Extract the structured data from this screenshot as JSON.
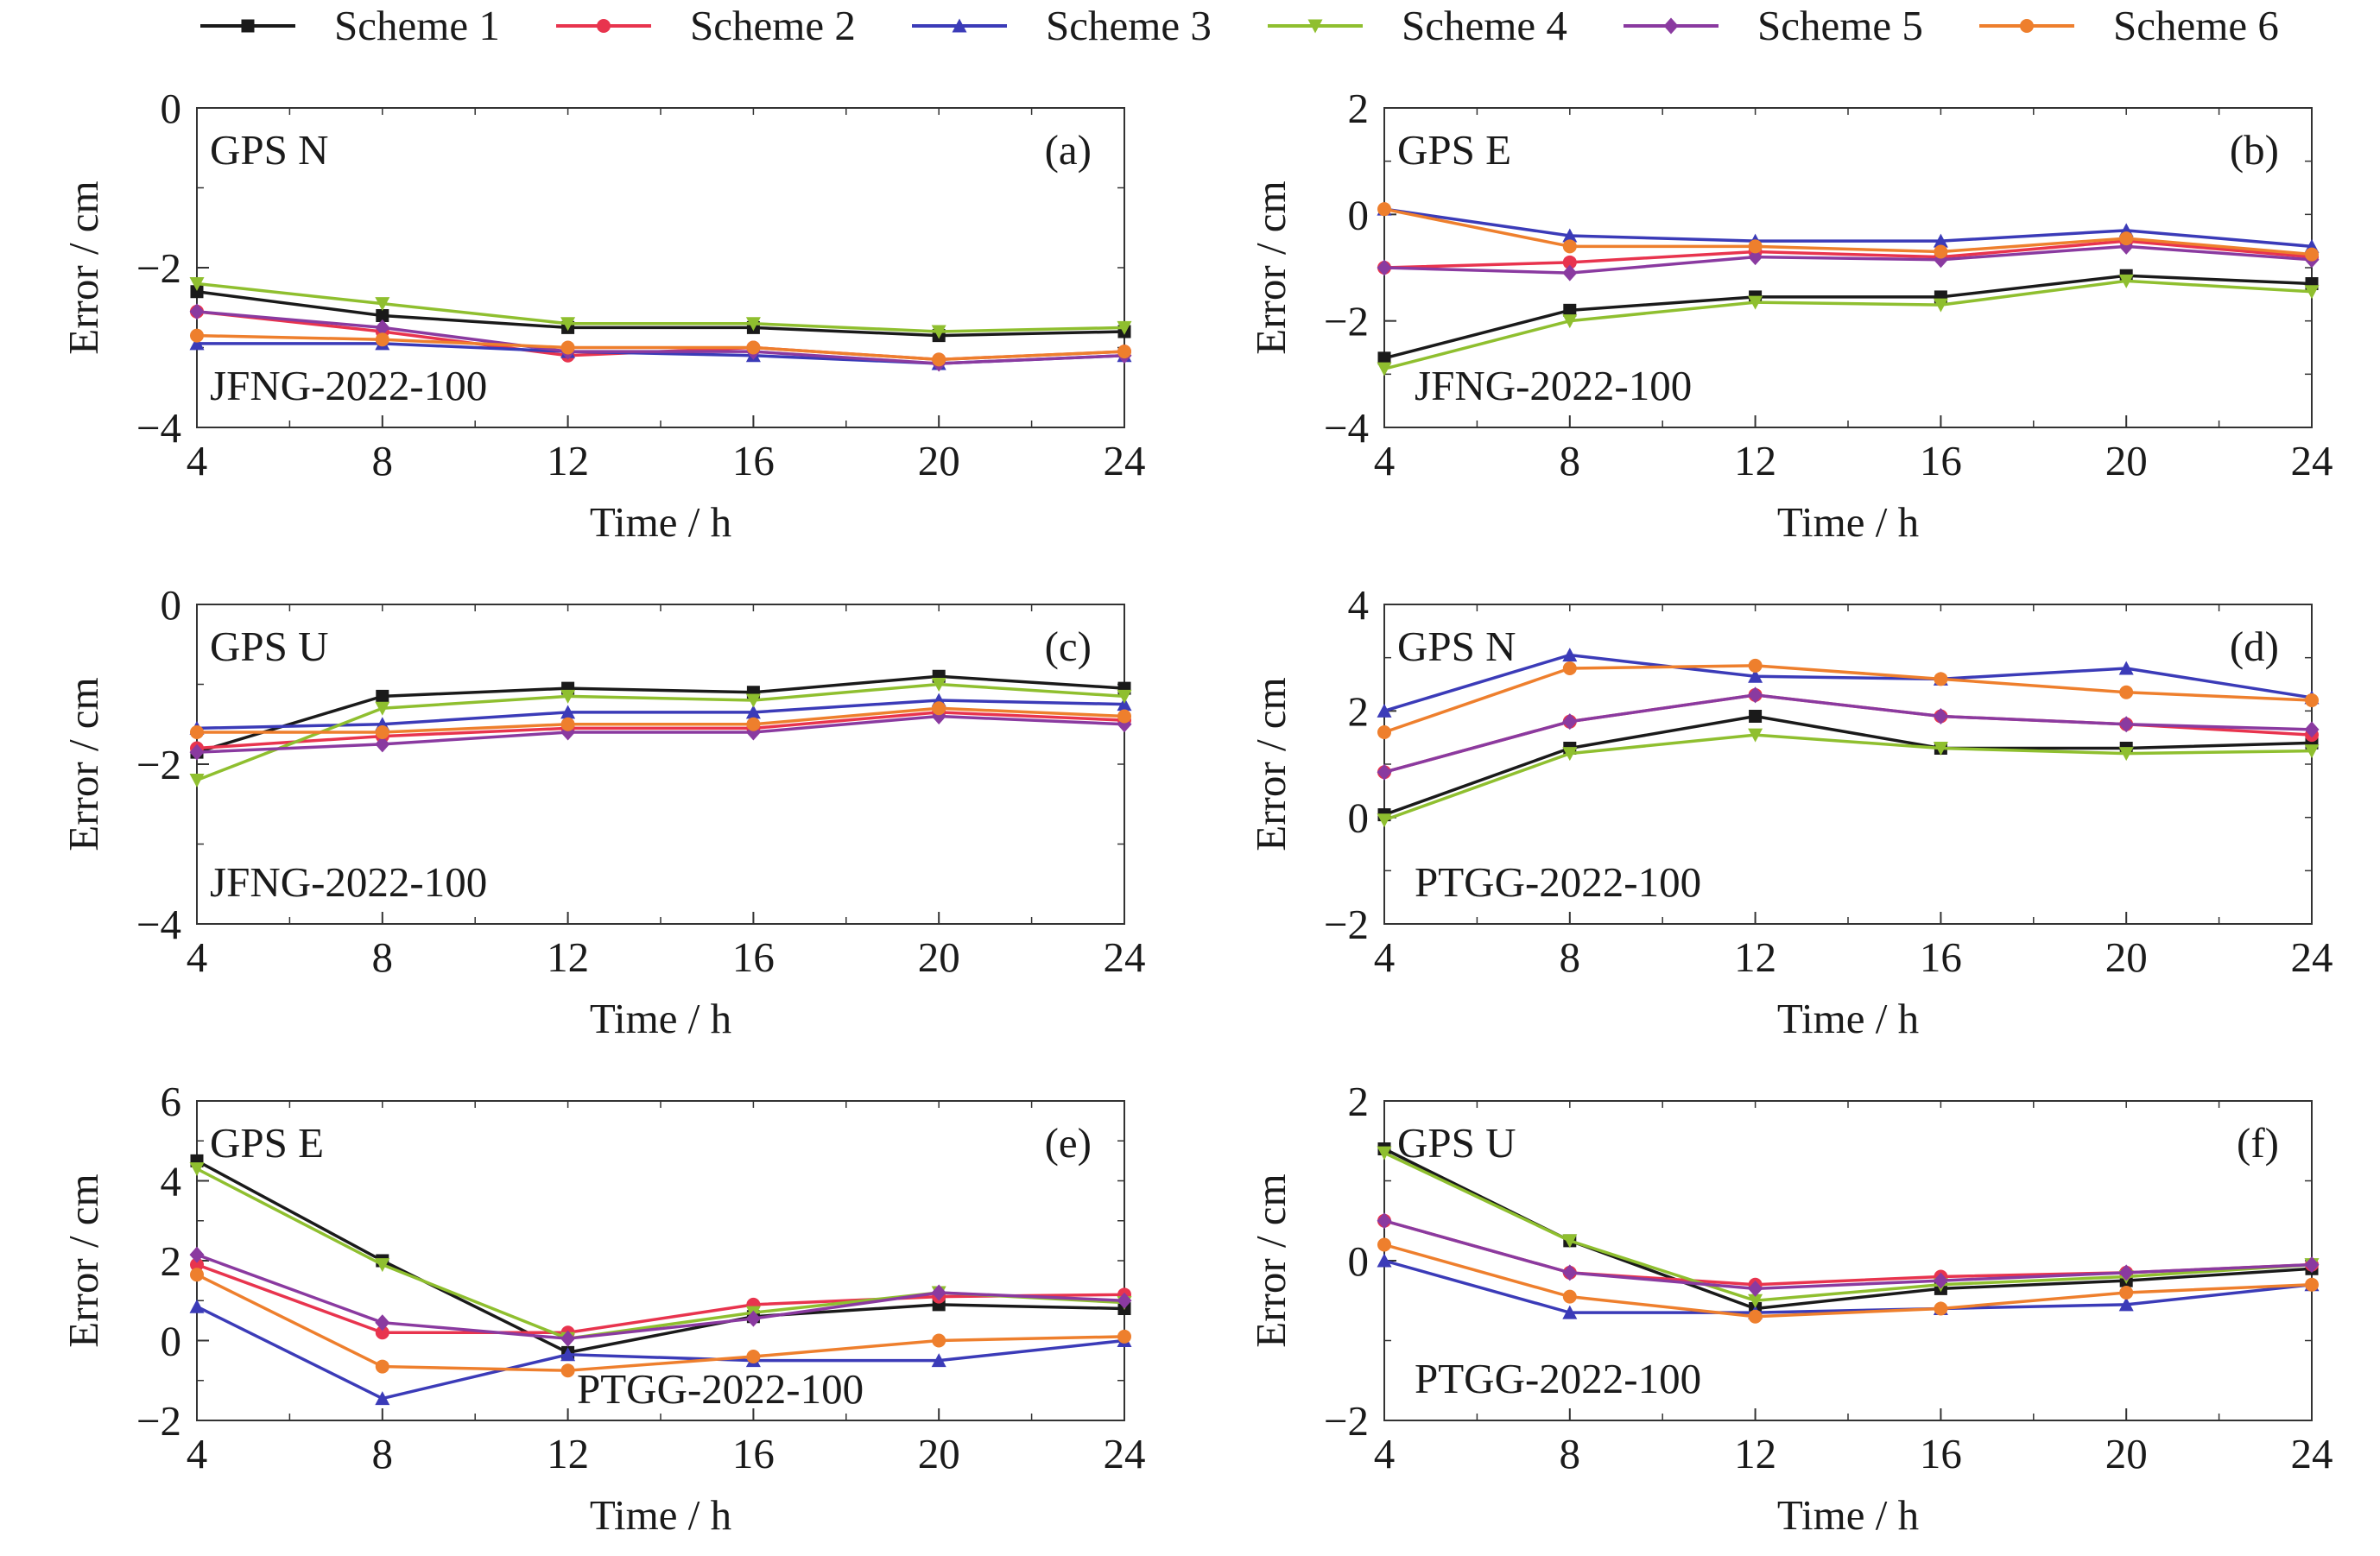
{
  "legend": [
    {
      "name": "Scheme 1",
      "color": "#1a1a1a",
      "marker": "square"
    },
    {
      "name": "Scheme 2",
      "color": "#e8344e",
      "marker": "circle"
    },
    {
      "name": "Scheme 3",
      "color": "#3b3bb8",
      "marker": "triangle-up"
    },
    {
      "name": "Scheme 4",
      "color": "#8fbf2f",
      "marker": "triangle-down"
    },
    {
      "name": "Scheme 5",
      "color": "#8a3aa0",
      "marker": "diamond"
    },
    {
      "name": "Scheme 6",
      "color": "#ee7f2d",
      "marker": "circle"
    }
  ],
  "chart_data": [
    {
      "type": "line",
      "panel_label": "(a)",
      "component": "GPS N",
      "station": "JFNG-2022-100",
      "xlabel": "Time / h",
      "ylabel": "Error / cm",
      "x": [
        4,
        8,
        12,
        16,
        20,
        24
      ],
      "xticks": [
        4,
        8,
        12,
        16,
        20,
        24
      ],
      "ylim": [
        -4,
        0
      ],
      "yticks": [
        -4,
        -2,
        0
      ],
      "ytick_labels": [
        "−4",
        "−2",
        "0"
      ],
      "series": [
        {
          "name": "Scheme 1",
          "values": [
            -2.3,
            -2.6,
            -2.75,
            -2.75,
            -2.85,
            -2.8
          ]
        },
        {
          "name": "Scheme 2",
          "values": [
            -2.55,
            -2.8,
            -3.1,
            -3.0,
            -3.15,
            -3.05
          ]
        },
        {
          "name": "Scheme 3",
          "values": [
            -2.95,
            -2.95,
            -3.05,
            -3.1,
            -3.2,
            -3.1
          ]
        },
        {
          "name": "Scheme 4",
          "values": [
            -2.2,
            -2.45,
            -2.7,
            -2.7,
            -2.8,
            -2.75
          ]
        },
        {
          "name": "Scheme 5",
          "values": [
            -2.55,
            -2.75,
            -3.05,
            -3.05,
            -3.2,
            -3.1
          ]
        },
        {
          "name": "Scheme 6",
          "values": [
            -2.85,
            -2.9,
            -3.0,
            -3.0,
            -3.15,
            -3.05
          ]
        }
      ]
    },
    {
      "type": "line",
      "panel_label": "(b)",
      "component": "GPS E",
      "station": "JFNG-2022-100",
      "xlabel": "Time / h",
      "ylabel": "Error / cm",
      "x": [
        4,
        8,
        12,
        16,
        20,
        24
      ],
      "xticks": [
        4,
        8,
        12,
        16,
        20,
        24
      ],
      "ylim": [
        -4,
        2
      ],
      "yticks": [
        -4,
        -2,
        0,
        2
      ],
      "ytick_labels": [
        "−4",
        "−2",
        "0",
        "2"
      ],
      "series": [
        {
          "name": "Scheme 1",
          "values": [
            -2.7,
            -1.8,
            -1.55,
            -1.55,
            -1.15,
            -1.3
          ]
        },
        {
          "name": "Scheme 2",
          "values": [
            -1.0,
            -0.9,
            -0.7,
            -0.8,
            -0.5,
            -0.8
          ]
        },
        {
          "name": "Scheme 3",
          "values": [
            0.1,
            -0.4,
            -0.5,
            -0.5,
            -0.3,
            -0.6
          ]
        },
        {
          "name": "Scheme 4",
          "values": [
            -2.9,
            -2.0,
            -1.65,
            -1.7,
            -1.25,
            -1.45
          ]
        },
        {
          "name": "Scheme 5",
          "values": [
            -1.0,
            -1.1,
            -0.8,
            -0.85,
            -0.6,
            -0.85
          ]
        },
        {
          "name": "Scheme 6",
          "values": [
            0.1,
            -0.6,
            -0.6,
            -0.7,
            -0.45,
            -0.75
          ]
        }
      ]
    },
    {
      "type": "line",
      "panel_label": "(c)",
      "component": "GPS U",
      "station": "JFNG-2022-100",
      "xlabel": "Time / h",
      "ylabel": "Error / cm",
      "x": [
        4,
        8,
        12,
        16,
        20,
        24
      ],
      "xticks": [
        4,
        8,
        12,
        16,
        20,
        24
      ],
      "ylim": [
        -4,
        0
      ],
      "yticks": [
        -4,
        -2,
        0
      ],
      "ytick_labels": [
        "−4",
        "−2",
        "0"
      ],
      "series": [
        {
          "name": "Scheme 1",
          "values": [
            -1.85,
            -1.15,
            -1.05,
            -1.1,
            -0.9,
            -1.05
          ]
        },
        {
          "name": "Scheme 2",
          "values": [
            -1.8,
            -1.65,
            -1.55,
            -1.55,
            -1.35,
            -1.45
          ]
        },
        {
          "name": "Scheme 3",
          "values": [
            -1.55,
            -1.5,
            -1.35,
            -1.35,
            -1.2,
            -1.25
          ]
        },
        {
          "name": "Scheme 4",
          "values": [
            -2.2,
            -1.3,
            -1.15,
            -1.2,
            -1.0,
            -1.15
          ]
        },
        {
          "name": "Scheme 5",
          "values": [
            -1.85,
            -1.75,
            -1.6,
            -1.6,
            -1.4,
            -1.5
          ]
        },
        {
          "name": "Scheme 6",
          "values": [
            -1.6,
            -1.6,
            -1.5,
            -1.5,
            -1.3,
            -1.4
          ]
        }
      ]
    },
    {
      "type": "line",
      "panel_label": "(d)",
      "component": "GPS N",
      "station": "PTGG-2022-100",
      "xlabel": "Time / h",
      "ylabel": "Error / cm",
      "x": [
        4,
        8,
        12,
        16,
        20,
        24
      ],
      "xticks": [
        4,
        8,
        12,
        16,
        20,
        24
      ],
      "ylim": [
        -2,
        4
      ],
      "yticks": [
        -2,
        0,
        2,
        4
      ],
      "ytick_labels": [
        "−2",
        "0",
        "2",
        "4"
      ],
      "series": [
        {
          "name": "Scheme 1",
          "values": [
            0.05,
            1.3,
            1.9,
            1.3,
            1.3,
            1.4
          ]
        },
        {
          "name": "Scheme 2",
          "values": [
            0.85,
            1.8,
            2.3,
            1.9,
            1.75,
            1.55
          ]
        },
        {
          "name": "Scheme 3",
          "values": [
            2.0,
            3.05,
            2.65,
            2.6,
            2.8,
            2.25
          ]
        },
        {
          "name": "Scheme 4",
          "values": [
            -0.05,
            1.2,
            1.55,
            1.3,
            1.2,
            1.25
          ]
        },
        {
          "name": "Scheme 5",
          "values": [
            0.85,
            1.8,
            2.3,
            1.9,
            1.75,
            1.65
          ]
        },
        {
          "name": "Scheme 6",
          "values": [
            1.6,
            2.8,
            2.85,
            2.6,
            2.35,
            2.2
          ]
        }
      ]
    },
    {
      "type": "line",
      "panel_label": "(e)",
      "component": "GPS E",
      "station": "PTGG-2022-100",
      "xlabel": "Time / h",
      "ylabel": "Error / cm",
      "x": [
        4,
        8,
        12,
        16,
        20,
        24
      ],
      "xticks": [
        4,
        8,
        12,
        16,
        20,
        24
      ],
      "ylim": [
        -2,
        6
      ],
      "yticks": [
        -2,
        0,
        2,
        4,
        6
      ],
      "ytick_labels": [
        "−2",
        "0",
        "2",
        "4",
        "6"
      ],
      "series": [
        {
          "name": "Scheme 1",
          "values": [
            4.5,
            2.0,
            -0.3,
            0.6,
            0.9,
            0.8
          ]
        },
        {
          "name": "Scheme 2",
          "values": [
            1.9,
            0.2,
            0.2,
            0.9,
            1.1,
            1.15
          ]
        },
        {
          "name": "Scheme 3",
          "values": [
            0.85,
            -1.45,
            -0.35,
            -0.5,
            -0.5,
            0.0
          ]
        },
        {
          "name": "Scheme 4",
          "values": [
            4.3,
            1.9,
            0.05,
            0.7,
            1.2,
            0.95
          ]
        },
        {
          "name": "Scheme 5",
          "values": [
            2.15,
            0.45,
            0.05,
            0.55,
            1.2,
            1.0
          ]
        },
        {
          "name": "Scheme 6",
          "values": [
            1.65,
            -0.65,
            -0.75,
            -0.4,
            0.0,
            0.1
          ]
        }
      ]
    },
    {
      "type": "line",
      "panel_label": "(f)",
      "component": "GPS U",
      "station": "PTGG-2022-100",
      "xlabel": "Time / h",
      "ylabel": "Error / cm",
      "x": [
        4,
        8,
        12,
        16,
        20,
        24
      ],
      "xticks": [
        4,
        8,
        12,
        16,
        20,
        24
      ],
      "ylim": [
        -2,
        2
      ],
      "yticks": [
        -2,
        0,
        2
      ],
      "ytick_labels": [
        "−2",
        "0",
        "2"
      ],
      "series": [
        {
          "name": "Scheme 1",
          "values": [
            1.4,
            0.25,
            -0.6,
            -0.35,
            -0.25,
            -0.1
          ]
        },
        {
          "name": "Scheme 2",
          "values": [
            0.5,
            -0.15,
            -0.3,
            -0.2,
            -0.15,
            -0.05
          ]
        },
        {
          "name": "Scheme 3",
          "values": [
            0.0,
            -0.65,
            -0.65,
            -0.6,
            -0.55,
            -0.3
          ]
        },
        {
          "name": "Scheme 4",
          "values": [
            1.35,
            0.25,
            -0.5,
            -0.3,
            -0.2,
            -0.05
          ]
        },
        {
          "name": "Scheme 5",
          "values": [
            0.5,
            -0.15,
            -0.35,
            -0.25,
            -0.15,
            -0.05
          ]
        },
        {
          "name": "Scheme 6",
          "values": [
            0.2,
            -0.45,
            -0.7,
            -0.6,
            -0.4,
            -0.3
          ]
        }
      ]
    }
  ]
}
